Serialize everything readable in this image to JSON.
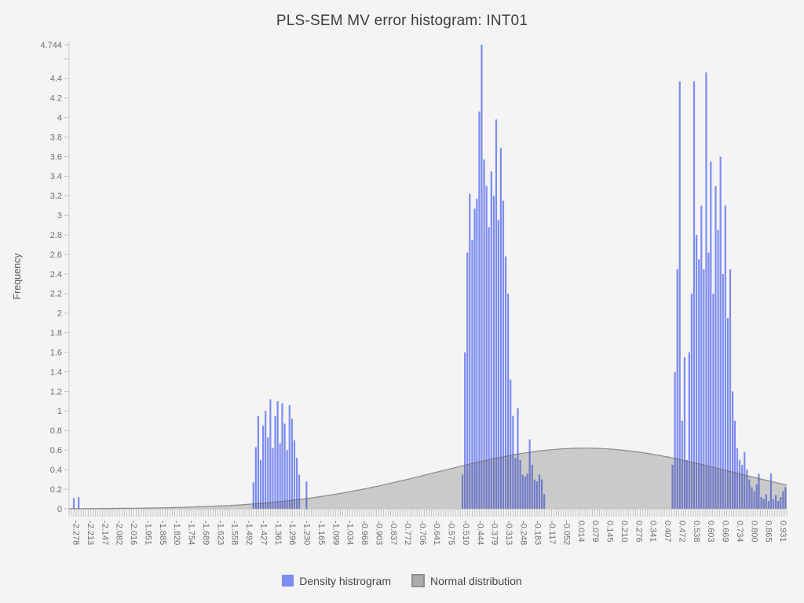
{
  "chart_data": {
    "type": "histogram+area",
    "title": "PLS-SEM MV error histogram: INT01",
    "xlabel": "",
    "ylabel": "Frequency",
    "ylim": [
      0,
      4.744
    ],
    "xlim": [
      -2.3105,
      0.9465
    ],
    "grid": false,
    "legend_position": "bottom",
    "bin_width": 0.0109,
    "x_tick_labels": [
      "-2.278",
      "-2.213",
      "-2.147",
      "-2.082",
      "-2.016",
      "-1.951",
      "-1.885",
      "-1.820",
      "-1.754",
      "-1.689",
      "-1.623",
      "-1.558",
      "-1.492",
      "-1.427",
      "-1.361",
      "-1.296",
      "-1.230",
      "-1.165",
      "-1.099",
      "-1.034",
      "-0.968",
      "-0.903",
      "-0.837",
      "-0.772",
      "-0.706",
      "-0.641",
      "-0.575",
      "-0.510",
      "-0.444",
      "-0.379",
      "-0.313",
      "-0.248",
      "-0.183",
      "-0.117",
      "-0.052",
      "0.014",
      "0.079",
      "0.145",
      "0.210",
      "0.276",
      "0.341",
      "0.407",
      "0.472",
      "0.538",
      "0.603",
      "0.669",
      "0.734",
      "0.800",
      "0.865",
      "0.931"
    ],
    "y_tick_values": [
      0,
      0.2,
      0.4,
      0.6,
      0.8,
      1,
      1.2,
      1.4,
      1.6,
      1.8,
      2,
      2.2,
      2.4,
      2.6,
      2.8,
      3,
      3.2,
      3.4,
      3.6,
      3.8,
      4,
      4.2,
      4.4,
      4.6,
      4.744
    ],
    "y_tick_labels": [
      "0",
      "0.2",
      "0.4",
      "0.6",
      "0.8",
      "1",
      "1.2",
      "1.4",
      "1.6",
      "1.8",
      "2",
      "2.2",
      "2.4",
      "2.6",
      "2.8",
      "3",
      "3.2",
      "3.4",
      "3.6",
      "3.8",
      "4",
      "4.2",
      "4.4",
      "",
      "4.744"
    ],
    "series": [
      {
        "name": "Density histrogram",
        "type": "bar",
        "color": "#7c8cf0",
        "bars": [
          [
            -2.289,
            0.11
          ],
          [
            -2.267,
            0.12
          ],
          [
            -1.474,
            0.27
          ],
          [
            -1.463,
            0.63
          ],
          [
            -1.452,
            0.95
          ],
          [
            -1.441,
            0.5
          ],
          [
            -1.43,
            0.85
          ],
          [
            -1.419,
            1.0
          ],
          [
            -1.408,
            0.73
          ],
          [
            -1.397,
            1.12
          ],
          [
            -1.386,
            0.62
          ],
          [
            -1.375,
            0.95
          ],
          [
            -1.364,
            1.1
          ],
          [
            -1.353,
            0.67
          ],
          [
            -1.343,
            1.08
          ],
          [
            -1.332,
            0.87
          ],
          [
            -1.321,
            0.6
          ],
          [
            -1.31,
            1.06
          ],
          [
            -1.299,
            0.92
          ],
          [
            -1.288,
            0.7
          ],
          [
            -1.277,
            0.52
          ],
          [
            -1.266,
            0.35
          ],
          [
            -1.233,
            0.28
          ],
          [
            -0.525,
            0.35
          ],
          [
            -0.514,
            1.6
          ],
          [
            -0.503,
            2.62
          ],
          [
            -0.492,
            3.22
          ],
          [
            -0.481,
            2.75
          ],
          [
            -0.47,
            3.07
          ],
          [
            -0.46,
            3.17
          ],
          [
            -0.449,
            4.06
          ],
          [
            -0.438,
            4.744
          ],
          [
            -0.427,
            3.57
          ],
          [
            -0.416,
            3.3
          ],
          [
            -0.405,
            2.88
          ],
          [
            -0.394,
            3.45
          ],
          [
            -0.383,
            3.2
          ],
          [
            -0.372,
            3.98
          ],
          [
            -0.362,
            2.95
          ],
          [
            -0.351,
            3.69
          ],
          [
            -0.34,
            3.15
          ],
          [
            -0.329,
            2.58
          ],
          [
            -0.318,
            2.2
          ],
          [
            -0.307,
            1.32
          ],
          [
            -0.296,
            0.95
          ],
          [
            -0.285,
            0.52
          ],
          [
            -0.274,
            1.03
          ],
          [
            -0.263,
            0.5
          ],
          [
            -0.252,
            0.35
          ],
          [
            -0.241,
            0.33
          ],
          [
            -0.231,
            0.36
          ],
          [
            -0.22,
            0.71
          ],
          [
            -0.209,
            0.45
          ],
          [
            -0.198,
            0.3
          ],
          [
            -0.187,
            0.28
          ],
          [
            -0.176,
            0.35
          ],
          [
            -0.165,
            0.3
          ],
          [
            -0.154,
            0.15
          ],
          [
            0.428,
            0.45
          ],
          [
            0.439,
            1.4
          ],
          [
            0.45,
            2.45
          ],
          [
            0.461,
            4.37
          ],
          [
            0.472,
            0.9
          ],
          [
            0.483,
            1.55
          ],
          [
            0.493,
            0.5
          ],
          [
            0.504,
            1.6
          ],
          [
            0.515,
            2.2
          ],
          [
            0.526,
            4.37
          ],
          [
            0.537,
            2.8
          ],
          [
            0.548,
            2.55
          ],
          [
            0.559,
            3.1
          ],
          [
            0.57,
            2.45
          ],
          [
            0.581,
            4.46
          ],
          [
            0.592,
            2.62
          ],
          [
            0.602,
            3.55
          ],
          [
            0.613,
            2.2
          ],
          [
            0.624,
            3.3
          ],
          [
            0.635,
            2.85
          ],
          [
            0.646,
            3.6
          ],
          [
            0.657,
            2.4
          ],
          [
            0.668,
            3.1
          ],
          [
            0.679,
            1.95
          ],
          [
            0.69,
            2.45
          ],
          [
            0.701,
            1.2
          ],
          [
            0.711,
            0.9
          ],
          [
            0.722,
            0.62
          ],
          [
            0.733,
            0.5
          ],
          [
            0.744,
            0.45
          ],
          [
            0.755,
            0.58
          ],
          [
            0.766,
            0.4
          ],
          [
            0.777,
            0.3
          ],
          [
            0.788,
            0.22
          ],
          [
            0.799,
            0.18
          ],
          [
            0.81,
            0.25
          ],
          [
            0.82,
            0.36
          ],
          [
            0.831,
            0.12
          ],
          [
            0.842,
            0.1
          ],
          [
            0.853,
            0.15
          ],
          [
            0.864,
            0.08
          ],
          [
            0.875,
            0.36
          ],
          [
            0.886,
            0.1
          ],
          [
            0.897,
            0.14
          ],
          [
            0.908,
            0.08
          ],
          [
            0.919,
            0.12
          ],
          [
            0.93,
            0.18
          ],
          [
            0.941,
            0.22
          ]
        ]
      },
      {
        "name": "Normal distribution",
        "type": "area",
        "fill": "rgba(72,72,72,0.24)",
        "stroke": "rgba(110,110,110,0.75)",
        "mean": 0.03,
        "sd": 0.67,
        "peak": 0.62
      }
    ]
  },
  "legend": {
    "items": [
      {
        "label": "Density histrogram",
        "color": "#7c8cf0",
        "border": "#7c8cf0"
      },
      {
        "label": "Normal distribution",
        "color": "#ababab",
        "border": "#8f8f8f"
      }
    ]
  },
  "axis_style": {
    "axis_line_color": "#cccccc",
    "tick_color": "#c3c3c3",
    "tick_label_color": "#6e6e6e"
  }
}
